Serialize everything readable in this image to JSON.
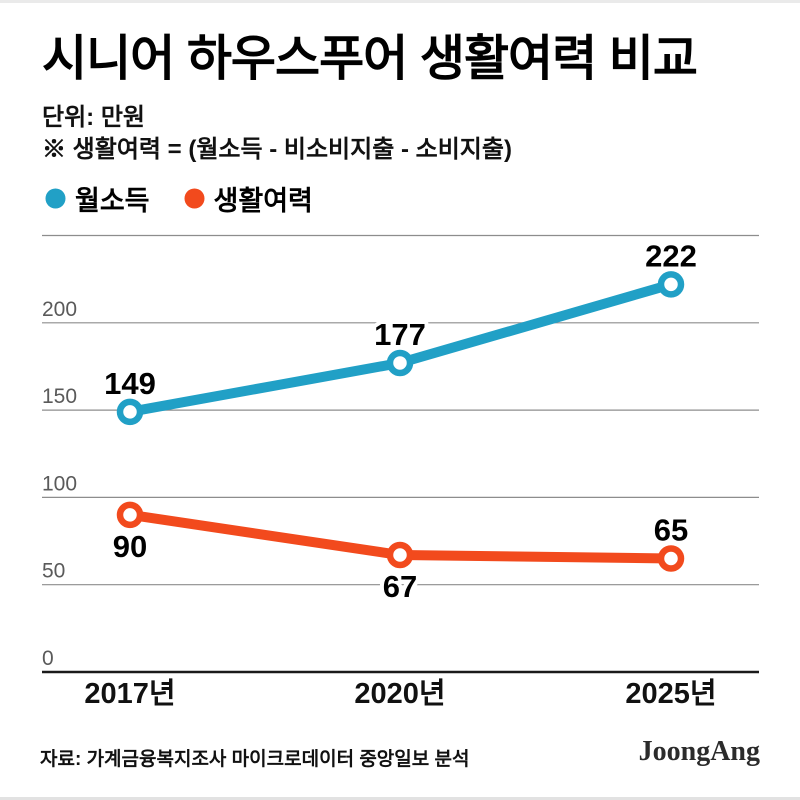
{
  "header": {
    "title": "시니어 하우스푸어 생활여력 비교",
    "unit_label": "단위: 만원",
    "note": "※ 생활여력 = (월소득 - 비소비지출 - 소비지출)"
  },
  "legend": {
    "items": [
      {
        "label": "월소득",
        "color": "#21A0C6"
      },
      {
        "label": "생활여력",
        "color": "#F24A1D"
      }
    ]
  },
  "chart_data": {
    "type": "line",
    "categories": [
      "2017년",
      "2020년",
      "2025년"
    ],
    "series": [
      {
        "name": "월소득",
        "color": "#21A0C6",
        "values": [
          149,
          177,
          222
        ],
        "label_positions": [
          "above",
          "above",
          "above"
        ]
      },
      {
        "name": "생활여력",
        "color": "#F24A1D",
        "values": [
          90,
          67,
          65
        ],
        "label_positions": [
          "below",
          "below",
          "above"
        ]
      }
    ],
    "title": "시니어 하우스푸어 생활여력 비교",
    "ylabel": "만원",
    "ylim": [
      0,
      250
    ],
    "gridline_step": 50,
    "ytick_labels": [
      "0",
      "50",
      "100",
      "150",
      "200"
    ],
    "grid": true,
    "legend_position": "top-left",
    "colors": {
      "grid": "#8d8d8d",
      "axis": "#1a1a1a",
      "value_label": "#000000",
      "tick_label": "#5a5a5a"
    }
  },
  "footer": {
    "source": "자료: 가계금융복지조사 마이크로데이터 중앙일보 분석",
    "brand": "JoongAng"
  }
}
